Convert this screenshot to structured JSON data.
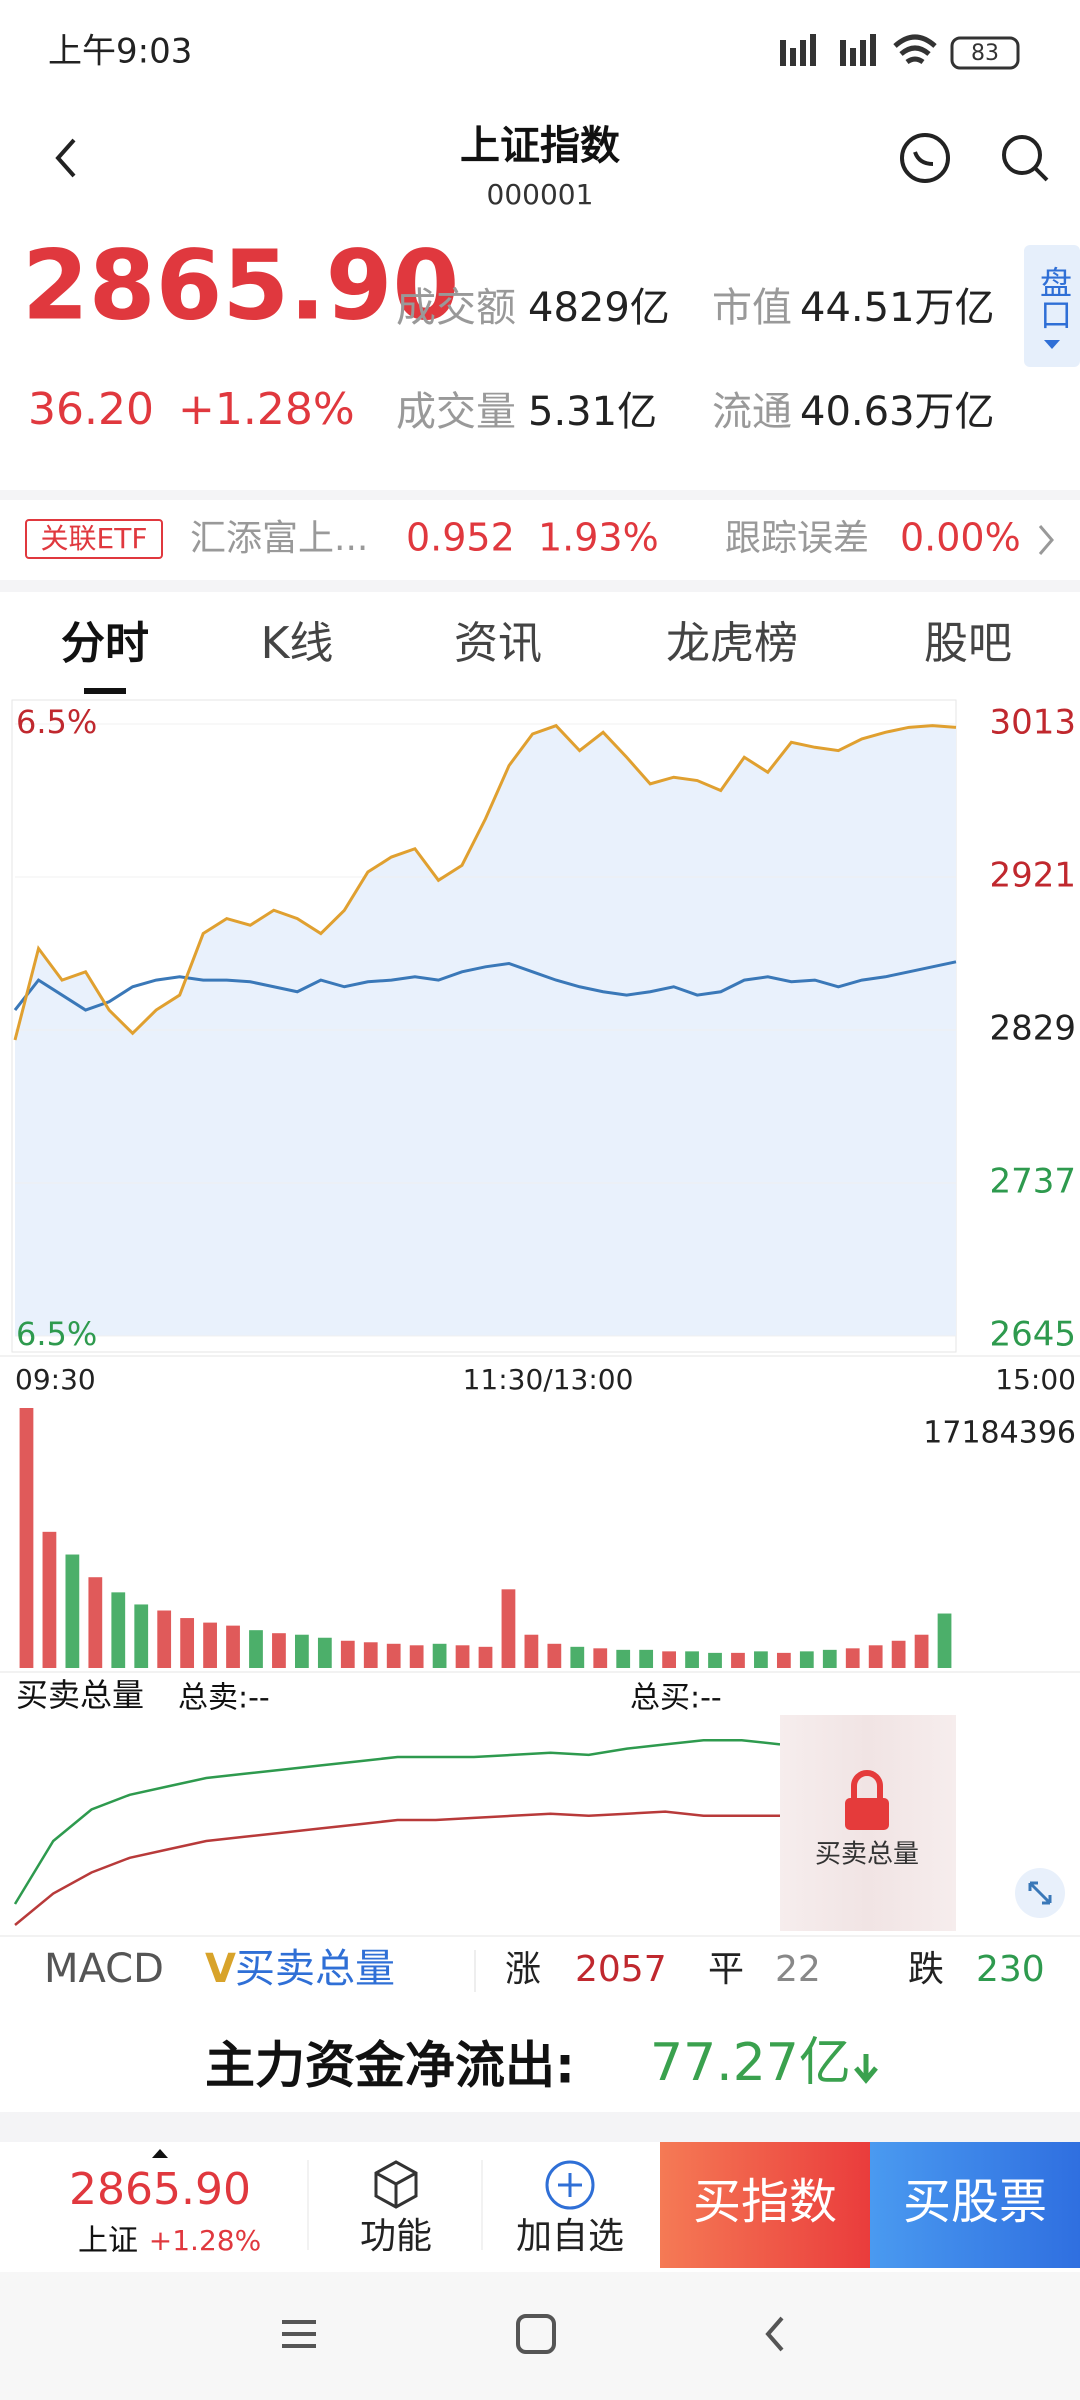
{
  "status": {
    "time": "上午9:03",
    "battery": "83"
  },
  "header": {
    "title": "上证指数",
    "code": "000001"
  },
  "quote": {
    "price": "2865.90",
    "change": "36.20",
    "change_pct": "+1.28%",
    "turnover_label": "成交额",
    "turnover": "4829亿",
    "mcap_label": "市值",
    "mcap": "44.51万亿",
    "volume_label": "成交量",
    "volume": "5.31亿",
    "float_label": "流通",
    "float": "40.63万亿",
    "side_tab": "盘口"
  },
  "etf": {
    "tag": "关联ETF",
    "name": "汇添富上...",
    "price": "0.952",
    "pct": "1.93%",
    "err_label": "跟踪误差",
    "err": "0.00%"
  },
  "tabs": [
    "分时",
    "K线",
    "资讯",
    "龙虎榜",
    "股吧"
  ],
  "intraday": {
    "type": "line",
    "ylim": [
      2645,
      3013
    ],
    "yticks": [
      2645,
      2737,
      2829,
      2921,
      3013
    ],
    "pct_top": "6.5%",
    "pct_bottom": "6.5%",
    "x_labels": [
      "09:30",
      "11:30/13:00",
      "15:00"
    ],
    "price": {
      "color": "#e0a030",
      "values": [
        2823,
        2878,
        2859,
        2864,
        2841,
        2827,
        2841,
        2850,
        2887,
        2896,
        2892,
        2901,
        2896,
        2887,
        2901,
        2924,
        2933,
        2938,
        2919,
        2928,
        2956,
        2988,
        3007,
        3012,
        2997,
        3008,
        2993,
        2977,
        2981,
        2979,
        2973,
        2993,
        2984,
        3002,
        2999,
        2997,
        3004,
        3008,
        3011,
        3012,
        3011
      ]
    },
    "average": {
      "color": "#3a78b8",
      "values": [
        2841,
        2859,
        2850,
        2841,
        2846,
        2855,
        2859,
        2861,
        2859,
        2859,
        2858,
        2855,
        2852,
        2859,
        2855,
        2858,
        2859,
        2861,
        2859,
        2864,
        2867,
        2869,
        2864,
        2859,
        2855,
        2852,
        2850,
        2852,
        2855,
        2850,
        2852,
        2859,
        2861,
        2858,
        2859,
        2855,
        2859,
        2861,
        2864,
        2867,
        2870
      ]
    }
  },
  "volume": {
    "ylim": [
      0,
      17184396
    ],
    "yticks": [
      17184396
    ],
    "up_color": "#e05a5a",
    "down_color": "#4caf6a",
    "values": [
      17184396,
      9000000,
      7500000,
      6000000,
      5000000,
      4200000,
      3800000,
      3300000,
      3000000,
      2800000,
      2500000,
      2300000,
      2200000,
      2000000,
      1800000,
      1700000,
      1600000,
      1500000,
      1600000,
      1500000,
      1400000,
      5200000,
      2200000,
      1600000,
      1400000,
      1300000,
      1200000,
      1200000,
      1100000,
      1100000,
      1000000,
      1000000,
      1100000,
      1000000,
      1100000,
      1200000,
      1300000,
      1500000,
      1800000,
      2200000,
      3600000
    ]
  },
  "orders": {
    "title": "买卖总量",
    "sell_label": "总卖:--",
    "buy_label": "总买:--",
    "lock_label": "买卖总量",
    "ylim": [
      0,
      100
    ],
    "buy": {
      "color": "#2e9a4e",
      "values": [
        10,
        40,
        55,
        62,
        66,
        70,
        72,
        74,
        76,
        78,
        80,
        80,
        80,
        81,
        82,
        81,
        84,
        86,
        88,
        88,
        86
      ]
    },
    "sell": {
      "color": "#b83a3a",
      "values": [
        0,
        15,
        25,
        32,
        36,
        40,
        42,
        44,
        46,
        48,
        50,
        50,
        51,
        52,
        53,
        52,
        53,
        54,
        52,
        52,
        52
      ]
    }
  },
  "indicators": {
    "macd": "MACD",
    "v_mark": "V",
    "vol_tab": "买卖总量",
    "up_label": "涨",
    "up": 2057,
    "flat_label": "平",
    "flat": 22,
    "down_label": "跌",
    "down": 230
  },
  "flow": {
    "label": "主力资金净流出:",
    "value": "77.27亿"
  },
  "bottom": {
    "price": "2865.90",
    "name": "上证",
    "pct": "+1.28%",
    "func": "功能",
    "add": "加自选",
    "buy_index": "买指数",
    "buy_stock": "买股票"
  }
}
